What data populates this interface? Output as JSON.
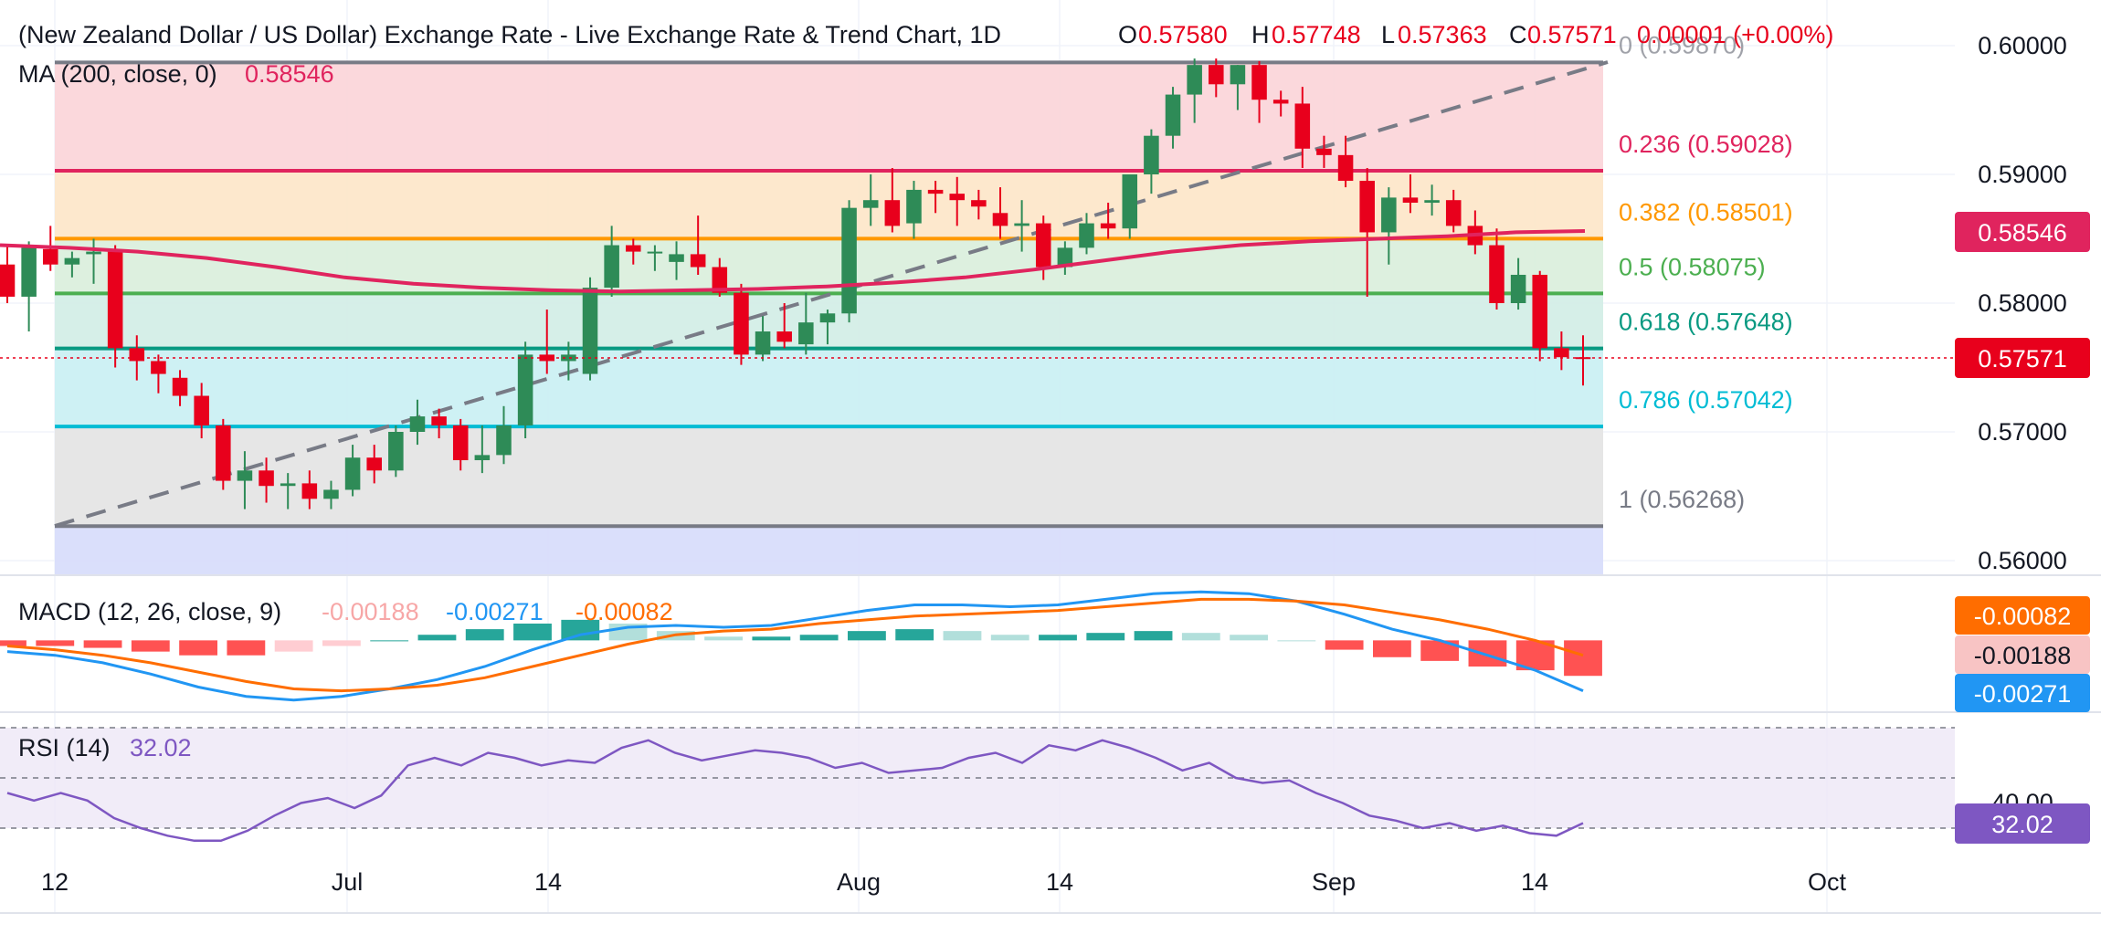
{
  "header": {
    "title": "(New Zealand Dollar / US Dollar) Exchange Rate - Live Exchange Rate & Trend Chart, 1D",
    "o_label": "O",
    "o_value": "0.57580",
    "h_label": "H",
    "h_value": "0.57748",
    "l_label": "L",
    "l_value": "0.57363",
    "c_label": "C",
    "c_value": "0.57571",
    "change": "0.00001 (+0.00%)"
  },
  "ma": {
    "label": "MA (200, close, 0)",
    "value": "0.58546",
    "price_tag": "0.58546"
  },
  "last_price_tag": "0.57571",
  "price_axis_ticks": [
    {
      "value": 0.6,
      "label": "0.60000"
    },
    {
      "value": 0.59,
      "label": "0.59000"
    },
    {
      "value": 0.58,
      "label": "0.58000"
    },
    {
      "value": 0.57,
      "label": "0.57000"
    },
    {
      "value": 0.56,
      "label": "0.56000"
    }
  ],
  "time_axis_ticks": [
    "12",
    "Jul",
    "14",
    "Aug",
    "14",
    "Sep",
    "14",
    "Oct"
  ],
  "fib_levels": [
    {
      "ratio": "0",
      "value": 0.5987,
      "label": "0 (0.59870)"
    },
    {
      "ratio": "0.236",
      "value": 0.59028,
      "label": "0.236 (0.59028)"
    },
    {
      "ratio": "0.382",
      "value": 0.58501,
      "label": "0.382 (0.58501)"
    },
    {
      "ratio": "0.5",
      "value": 0.58075,
      "label": "0.5 (0.58075)"
    },
    {
      "ratio": "0.618",
      "value": 0.57648,
      "label": "0.618 (0.57648)"
    },
    {
      "ratio": "0.786",
      "value": 0.57042,
      "label": "0.786 (0.57042)"
    },
    {
      "ratio": "1",
      "value": 0.56268,
      "label": "1 (0.56268)"
    }
  ],
  "macd": {
    "label": "MACD (12, 26, close, 9)",
    "hist_value": "-0.00188",
    "macd_value": "-0.00271",
    "signal_value": "-0.00082",
    "tag_signal": "-0.00082",
    "tag_hist": "-0.00188",
    "tag_macd": "-0.00271"
  },
  "rsi": {
    "label": "RSI (14)",
    "value": "32.02",
    "tag": "32.02",
    "axis_label": "40.00"
  },
  "colors": {
    "up": "#2e8b57",
    "down": "#e8001c",
    "ma": "#e0245e",
    "macd": "#2196f3",
    "signal": "#ff6d00",
    "rsi": "#7e57c2"
  },
  "chart_data": {
    "type": "candlestick",
    "ohlc": [
      [
        0.583,
        0.5845,
        0.58,
        0.5805
      ],
      [
        0.5805,
        0.5848,
        0.5778,
        0.5843
      ],
      [
        0.5842,
        0.586,
        0.5825,
        0.583
      ],
      [
        0.583,
        0.584,
        0.582,
        0.5835
      ],
      [
        0.5838,
        0.585,
        0.5815,
        0.584
      ],
      [
        0.584,
        0.5845,
        0.575,
        0.5765
      ],
      [
        0.5765,
        0.5775,
        0.574,
        0.5755
      ],
      [
        0.5755,
        0.576,
        0.573,
        0.5745
      ],
      [
        0.5742,
        0.5748,
        0.572,
        0.5728
      ],
      [
        0.5728,
        0.5738,
        0.5695,
        0.5705
      ],
      [
        0.5705,
        0.571,
        0.5655,
        0.5662
      ],
      [
        0.5662,
        0.5685,
        0.564,
        0.567
      ],
      [
        0.567,
        0.568,
        0.5645,
        0.5658
      ],
      [
        0.5658,
        0.5668,
        0.564,
        0.566
      ],
      [
        0.566,
        0.567,
        0.564,
        0.5648
      ],
      [
        0.5648,
        0.5662,
        0.564,
        0.5655
      ],
      [
        0.5655,
        0.569,
        0.565,
        0.568
      ],
      [
        0.568,
        0.569,
        0.566,
        0.567
      ],
      [
        0.567,
        0.5705,
        0.5665,
        0.57
      ],
      [
        0.57,
        0.5725,
        0.569,
        0.5712
      ],
      [
        0.5712,
        0.5718,
        0.5695,
        0.5705
      ],
      [
        0.5705,
        0.571,
        0.567,
        0.5678
      ],
      [
        0.5678,
        0.5705,
        0.5668,
        0.5682
      ],
      [
        0.5682,
        0.572,
        0.5675,
        0.5705
      ],
      [
        0.5705,
        0.577,
        0.5695,
        0.576
      ],
      [
        0.576,
        0.5795,
        0.5745,
        0.5755
      ],
      [
        0.5755,
        0.577,
        0.574,
        0.576
      ],
      [
        0.5745,
        0.582,
        0.574,
        0.5812
      ],
      [
        0.5812,
        0.586,
        0.5805,
        0.5845
      ],
      [
        0.5845,
        0.585,
        0.583,
        0.584
      ],
      [
        0.584,
        0.5845,
        0.5825,
        0.584
      ],
      [
        0.5832,
        0.5848,
        0.5818,
        0.5838
      ],
      [
        0.5838,
        0.5868,
        0.5822,
        0.5828
      ],
      [
        0.5828,
        0.5835,
        0.5805,
        0.5808
      ],
      [
        0.5808,
        0.5815,
        0.5752,
        0.576
      ],
      [
        0.576,
        0.579,
        0.5755,
        0.5778
      ],
      [
        0.5778,
        0.58,
        0.5765,
        0.577
      ],
      [
        0.5768,
        0.5808,
        0.576,
        0.5785
      ],
      [
        0.5785,
        0.5795,
        0.5768,
        0.5792
      ],
      [
        0.5792,
        0.588,
        0.5785,
        0.5874
      ],
      [
        0.5874,
        0.59,
        0.586,
        0.588
      ],
      [
        0.588,
        0.5905,
        0.5855,
        0.586
      ],
      [
        0.5862,
        0.5895,
        0.585,
        0.5888
      ],
      [
        0.5888,
        0.5895,
        0.587,
        0.5885
      ],
      [
        0.5885,
        0.5898,
        0.586,
        0.588
      ],
      [
        0.588,
        0.5888,
        0.5865,
        0.5875
      ],
      [
        0.587,
        0.589,
        0.585,
        0.586
      ],
      [
        0.586,
        0.588,
        0.584,
        0.5862
      ],
      [
        0.5862,
        0.5868,
        0.5818,
        0.5828
      ],
      [
        0.5828,
        0.5848,
        0.5822,
        0.5843
      ],
      [
        0.5843,
        0.587,
        0.5838,
        0.5862
      ],
      [
        0.5862,
        0.5878,
        0.585,
        0.5858
      ],
      [
        0.5858,
        0.59,
        0.585,
        0.59
      ],
      [
        0.59,
        0.5935,
        0.5885,
        0.593
      ],
      [
        0.593,
        0.5968,
        0.592,
        0.5962
      ],
      [
        0.5962,
        0.599,
        0.594,
        0.5985
      ],
      [
        0.5985,
        0.599,
        0.596,
        0.597
      ],
      [
        0.597,
        0.5985,
        0.595,
        0.5985
      ],
      [
        0.5985,
        0.5988,
        0.594,
        0.5958
      ],
      [
        0.5958,
        0.5965,
        0.5945,
        0.5955
      ],
      [
        0.5955,
        0.5968,
        0.5905,
        0.592
      ],
      [
        0.592,
        0.593,
        0.5905,
        0.5915
      ],
      [
        0.5915,
        0.593,
        0.589,
        0.5895
      ],
      [
        0.5895,
        0.5905,
        0.5805,
        0.5855
      ],
      [
        0.5855,
        0.589,
        0.583,
        0.5882
      ],
      [
        0.5882,
        0.59,
        0.587,
        0.5878
      ],
      [
        0.5878,
        0.5892,
        0.5868,
        0.588
      ],
      [
        0.588,
        0.5888,
        0.5855,
        0.586
      ],
      [
        0.586,
        0.5872,
        0.5838,
        0.5845
      ],
      [
        0.5845,
        0.5858,
        0.5795,
        0.58
      ],
      [
        0.58,
        0.5835,
        0.5795,
        0.5822
      ],
      [
        0.5822,
        0.5825,
        0.5755,
        0.5765
      ],
      [
        0.5765,
        0.5778,
        0.5748,
        0.5758
      ],
      [
        0.5758,
        0.5775,
        0.5736,
        0.5757
      ]
    ],
    "ma200": [
      0.5845,
      0.5843,
      0.584,
      0.5835,
      0.5828,
      0.582,
      0.5815,
      0.5812,
      0.581,
      0.5809,
      0.581,
      0.5811,
      0.5813,
      0.5816,
      0.582,
      0.5826,
      0.5833,
      0.584,
      0.5845,
      0.5848,
      0.585,
      0.5852,
      0.5855,
      0.5856
    ],
    "fib_range": [
      0.56268,
      0.5987
    ],
    "ylim": [
      0.558,
      0.602
    ],
    "x_ticks": [
      "12",
      "Jul",
      "14",
      "Aug",
      "14",
      "Sep",
      "14",
      "Oct"
    ]
  },
  "macd_series": {
    "macd": [
      -0.0006,
      -0.0008,
      -0.0012,
      -0.0018,
      -0.0025,
      -0.003,
      -0.0032,
      -0.003,
      -0.0026,
      -0.0021,
      -0.0014,
      -0.0005,
      0.0003,
      0.0007,
      0.0008,
      0.0007,
      0.0008,
      0.0012,
      0.0016,
      0.0019,
      0.0019,
      0.0018,
      0.0019,
      0.0022,
      0.0025,
      0.0026,
      0.0025,
      0.0021,
      0.0014,
      0.0006,
      0.0,
      -0.0008,
      -0.0016,
      -0.0027
    ],
    "signal": [
      -0.0003,
      -0.0005,
      -0.0008,
      -0.0012,
      -0.0017,
      -0.0022,
      -0.0026,
      -0.0027,
      -0.0026,
      -0.0024,
      -0.002,
      -0.0014,
      -0.0008,
      -0.0002,
      0.0003,
      0.0005,
      0.0006,
      0.0009,
      0.0011,
      0.0013,
      0.0014,
      0.0015,
      0.0016,
      0.0018,
      0.002,
      0.0022,
      0.0022,
      0.0021,
      0.0019,
      0.0015,
      0.0011,
      0.0006,
      0.0,
      -0.0008
    ],
    "hist": [
      -0.0003,
      -0.0003,
      -0.0004,
      -0.0006,
      -0.0008,
      -0.0008,
      -0.0006,
      -0.0003,
      0.0,
      0.0003,
      0.0006,
      0.0009,
      0.0011,
      0.0009,
      0.0005,
      0.0002,
      0.0002,
      0.0003,
      0.0005,
      0.0006,
      0.0005,
      0.0003,
      0.0003,
      0.0004,
      0.0005,
      0.0004,
      0.0003,
      0.0,
      -0.0005,
      -0.0009,
      -0.0011,
      -0.0014,
      -0.0016,
      -0.0019
    ],
    "ylim": [
      -0.0036,
      0.003
    ]
  },
  "rsi_series": {
    "values": [
      44,
      41,
      44,
      41,
      34,
      30,
      27,
      25,
      25,
      29,
      35,
      40,
      42,
      38,
      43,
      55,
      58,
      55,
      60,
      58,
      55,
      57,
      56,
      62,
      65,
      60,
      57,
      59,
      61,
      60,
      58,
      54,
      56,
      52,
      53,
      54,
      58,
      60,
      56,
      63,
      61,
      65,
      62,
      58,
      53,
      56,
      50,
      48,
      49,
      44,
      40,
      35,
      33,
      30,
      32,
      29,
      31,
      28,
      27,
      32
    ],
    "ylim": [
      20,
      75
    ],
    "bands": [
      70,
      50,
      30
    ]
  }
}
